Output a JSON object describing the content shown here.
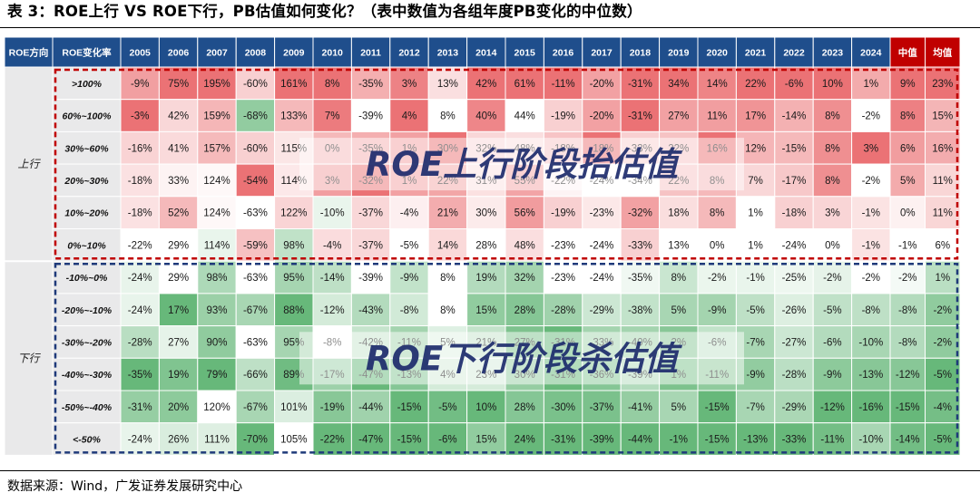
{
  "page": {
    "title": "表 3：ROE上行 VS ROE下行，PB估值如何变化？（表中数值为各组年度PB变化的中位数）",
    "source": "数据来源：Wind，广发证券发展研究中心"
  },
  "colors": {
    "header_bg": "#1f4e8c",
    "header_summary_bg": "#c00000",
    "header_text": "#ffffff",
    "up_border": "#c00000",
    "down_border": "#1f3a7a",
    "negative_accent": "#e06666",
    "positive_accent": "#57a86b"
  },
  "chart_data": {
    "type": "table",
    "title": "表 3：ROE上行 VS ROE下行，PB估值如何变化？（表中数值为各组年度PB变化的中位数）",
    "headers": [
      "ROE方向",
      "ROE变化率",
      "2005",
      "2006",
      "2007",
      "2008",
      "2009",
      "2010",
      "2011",
      "2012",
      "2013",
      "2014",
      "2015",
      "2016",
      "2017",
      "2018",
      "2019",
      "2020",
      "2021",
      "2022",
      "2023",
      "2024",
      "中值",
      "均值"
    ],
    "groups": [
      {
        "direction": "上行",
        "overlay": "ROE上行阶段抬估值",
        "rows": [
          {
            "label": ">100%",
            "values": [
              "-9%",
              "75%",
              "195%",
              "-60%",
              "161%",
              "8%",
              "-35%",
              "3%",
              "13%",
              "42%",
              "61%",
              "-11%",
              "-20%",
              "-31%",
              "34%",
              "14%",
              "22%",
              "-6%",
              "10%",
              "1%",
              "9%",
              "23%"
            ]
          },
          {
            "label": "60%~100%",
            "values": [
              "-3%",
              "42%",
              "159%",
              "-68%",
              "133%",
              "7%",
              "-39%",
              "4%",
              "8%",
              "40%",
              "44%",
              "-19%",
              "-20%",
              "-31%",
              "27%",
              "11%",
              "17%",
              "-14%",
              "8%",
              "-2%",
              "8%",
              "15%"
            ]
          },
          {
            "label": "30%~60%",
            "values": [
              "-16%",
              "41%",
              "157%",
              "-60%",
              "115%",
              "0%",
              "-35%",
              "1%",
              "30%",
              "32%",
              "48%",
              "-18%",
              "-18%",
              "-33%",
              "22%",
              "16%",
              "12%",
              "-15%",
              "8%",
              "3%",
              "6%",
              "16%"
            ]
          },
          {
            "label": "20%~30%",
            "values": [
              "-18%",
              "33%",
              "124%",
              "-54%",
              "114%",
              "3%",
              "-32%",
              "1%",
              "22%",
              "31%",
              "55%",
              "-22%",
              "-24%",
              "-34%",
              "22%",
              "8%",
              "7%",
              "-17%",
              "8%",
              "-2%",
              "5%",
              "11%"
            ]
          },
          {
            "label": "10%~20%",
            "values": [
              "-18%",
              "52%",
              "124%",
              "-63%",
              "122%",
              "-10%",
              "-37%",
              "-4%",
              "21%",
              "30%",
              "56%",
              "-19%",
              "-23%",
              "-32%",
              "18%",
              "8%",
              "1%",
              "-18%",
              "3%",
              "-1%",
              "0%",
              "11%"
            ]
          },
          {
            "label": "0%~10%",
            "values": [
              "-22%",
              "29%",
              "114%",
              "-59%",
              "98%",
              "-4%",
              "-37%",
              "-5%",
              "14%",
              "28%",
              "48%",
              "-23%",
              "-24%",
              "-33%",
              "13%",
              "0%",
              "1%",
              "-24%",
              "0%",
              "-1%",
              "-1%",
              "6%"
            ]
          }
        ]
      },
      {
        "direction": "下行",
        "overlay": "ROE下行阶段杀估值",
        "rows": [
          {
            "label": "-10%~0%",
            "values": [
              "-24%",
              "29%",
              "98%",
              "-63%",
              "95%",
              "-14%",
              "-39%",
              "-9%",
              "8%",
              "19%",
              "32%",
              "-23%",
              "-24%",
              "-35%",
              "8%",
              "-2%",
              "-1%",
              "-25%",
              "-2%",
              "-2%",
              "-2%",
              "1%"
            ]
          },
          {
            "label": "-20%~-10%",
            "values": [
              "-24%",
              "17%",
              "93%",
              "-67%",
              "88%",
              "-12%",
              "-43%",
              "-8%",
              "8%",
              "15%",
              "28%",
              "-28%",
              "-29%",
              "-38%",
              "5%",
              "-9%",
              "-5%",
              "-26%",
              "-5%",
              "-8%",
              "-8%",
              "-2%"
            ]
          },
          {
            "label": "-30%~-20%",
            "values": [
              "-28%",
              "27%",
              "90%",
              "-63%",
              "95%",
              "-8%",
              "-42%",
              "-11%",
              "5%",
              "21%",
              "27%",
              "-31%",
              "-33%",
              "-40%",
              "2%",
              "-6%",
              "-7%",
              "-27%",
              "-6%",
              "-10%",
              "-8%",
              "-2%"
            ]
          },
          {
            "label": "-40%~-30%",
            "values": [
              "-35%",
              "19%",
              "79%",
              "-66%",
              "89%",
              "-17%",
              "-47%",
              "-13%",
              "4%",
              "23%",
              "30%",
              "-31%",
              "-36%",
              "-39%",
              "1%",
              "-11%",
              "-9%",
              "-28%",
              "-9%",
              "-13%",
              "-12%",
              "-5%"
            ]
          },
          {
            "label": "-50%~-40%",
            "values": [
              "-31%",
              "20%",
              "120%",
              "-67%",
              "101%",
              "-19%",
              "-44%",
              "-15%",
              "-5%",
              "10%",
              "28%",
              "-30%",
              "-37%",
              "-41%",
              "5%",
              "-15%",
              "-7%",
              "-29%",
              "-12%",
              "-16%",
              "-15%",
              "-4%"
            ]
          },
          {
            "label": "<-50%",
            "values": [
              "-24%",
              "26%",
              "111%",
              "-70%",
              "105%",
              "-22%",
              "-47%",
              "-15%",
              "-6%",
              "15%",
              "24%",
              "-31%",
              "-39%",
              "-44%",
              "-1%",
              "-15%",
              "-13%",
              "-33%",
              "-11%",
              "-10%",
              "-14%",
              "-5%"
            ]
          }
        ]
      }
    ]
  }
}
